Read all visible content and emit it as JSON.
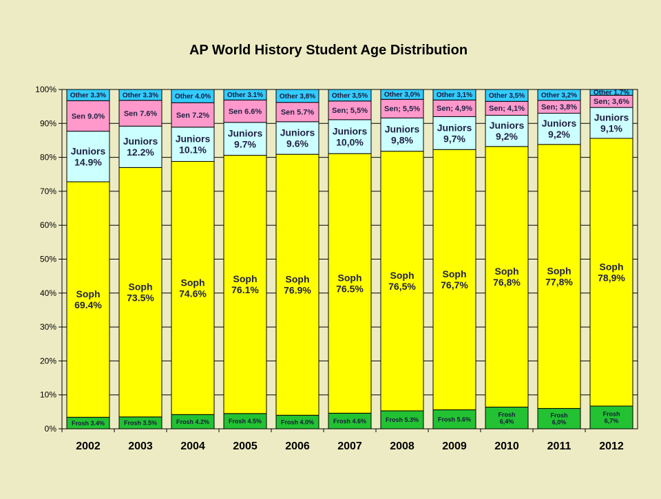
{
  "chart_data": {
    "type": "bar",
    "stacked": true,
    "title": "AP World History Student Age Distribution",
    "xlabel": "",
    "ylabel": "",
    "ylim": [
      0,
      100
    ],
    "yticks": [
      "0%",
      "10%",
      "20%",
      "30%",
      "40%",
      "50%",
      "60%",
      "70%",
      "80%",
      "90%",
      "100%"
    ],
    "grid": true,
    "legend": "none",
    "categories": [
      "2002",
      "2003",
      "2004",
      "2005",
      "2006",
      "2007",
      "2008",
      "2009",
      "2010",
      "2011",
      "2012"
    ],
    "series": [
      {
        "key": "frosh",
        "color": "#22c232",
        "values": [
          3.4,
          3.5,
          4.2,
          4.5,
          4.0,
          4.6,
          5.3,
          5.6,
          6.4,
          6.0,
          6.7
        ],
        "labels": [
          [
            "Frosh 3.4%"
          ],
          [
            "Frosh 3.5%"
          ],
          [
            "Frosh 4.2%"
          ],
          [
            "Frosh 4.5%"
          ],
          [
            "Frosh 4.0%"
          ],
          [
            "Frosh 4.6%"
          ],
          [
            "Frosh 5.3%"
          ],
          [
            "Frosh 5.6%"
          ],
          [
            "Frosh",
            "6,4%"
          ],
          [
            "Frosh",
            "6,0%"
          ],
          [
            "Frosh",
            "6,7%"
          ]
        ]
      },
      {
        "key": "soph",
        "color": "#ffff00",
        "values": [
          69.4,
          73.5,
          74.6,
          76.1,
          76.9,
          76.5,
          76.5,
          76.7,
          76.8,
          77.8,
          78.9
        ],
        "labels": [
          [
            "Soph",
            "69.4%"
          ],
          [
            "Soph",
            "73.5%"
          ],
          [
            "Soph",
            "74.6%"
          ],
          [
            "Soph",
            "76.1%"
          ],
          [
            "Soph",
            "76.9%"
          ],
          [
            "Soph",
            "76.5%"
          ],
          [
            "Soph",
            "76,5%"
          ],
          [
            "Soph",
            "76,7%"
          ],
          [
            "Soph",
            "76,8%"
          ],
          [
            "Soph",
            "77,8%"
          ],
          [
            "Soph",
            "78,9%"
          ]
        ]
      },
      {
        "key": "juniors",
        "color": "#ccffff",
        "values": [
          14.9,
          12.2,
          10.1,
          9.7,
          9.6,
          10.0,
          9.8,
          9.7,
          9.2,
          9.2,
          9.1
        ],
        "labels": [
          [
            "Juniors",
            "14.9%"
          ],
          [
            "Juniors",
            "12.2%"
          ],
          [
            "Juniors",
            "10.1%"
          ],
          [
            "Juniors",
            "9.7%"
          ],
          [
            "Juniors",
            "9.6%"
          ],
          [
            "Juniors",
            "10,0%"
          ],
          [
            "Juniors",
            "9,8%"
          ],
          [
            "Juniors",
            "9,7%"
          ],
          [
            "Juniors",
            "9,2%"
          ],
          [
            "Juniors",
            "9,2%"
          ],
          [
            "Juniors",
            "9,1%"
          ]
        ]
      },
      {
        "key": "seniors",
        "color": "#ff99cc",
        "values": [
          9.0,
          7.6,
          7.2,
          6.6,
          5.7,
          5.5,
          5.5,
          4.9,
          4.1,
          3.8,
          3.6
        ],
        "labels": [
          [
            "Sen 9.0%"
          ],
          [
            "Sen 7.6%"
          ],
          [
            "Sen 7.2%"
          ],
          [
            "Sen 6.6%"
          ],
          [
            "Sen 5.7%"
          ],
          [
            "Sen; 5,5%"
          ],
          [
            "Sen; 5,5%"
          ],
          [
            "Sen; 4,9%"
          ],
          [
            "Sen; 4,1%"
          ],
          [
            "Sen; 3,8%"
          ],
          [
            "Sen; 3,6%"
          ]
        ]
      },
      {
        "key": "other",
        "color": "#33ccff",
        "values": [
          3.3,
          3.3,
          4.0,
          3.1,
          3.8,
          3.5,
          3.0,
          3.1,
          3.5,
          3.2,
          1.7
        ],
        "labels": [
          [
            "Other 3.3%"
          ],
          [
            "Other 3.3%"
          ],
          [
            "Other 4.0%"
          ],
          [
            "Other 3.1%"
          ],
          [
            "Other 3,8%"
          ],
          [
            "Other 3,5%"
          ],
          [
            "Other 3,0%"
          ],
          [
            "Other 3,1%"
          ],
          [
            "Other 3,5%"
          ],
          [
            "Other 3,2%"
          ],
          [
            "Other 1,7%"
          ]
        ]
      }
    ]
  }
}
